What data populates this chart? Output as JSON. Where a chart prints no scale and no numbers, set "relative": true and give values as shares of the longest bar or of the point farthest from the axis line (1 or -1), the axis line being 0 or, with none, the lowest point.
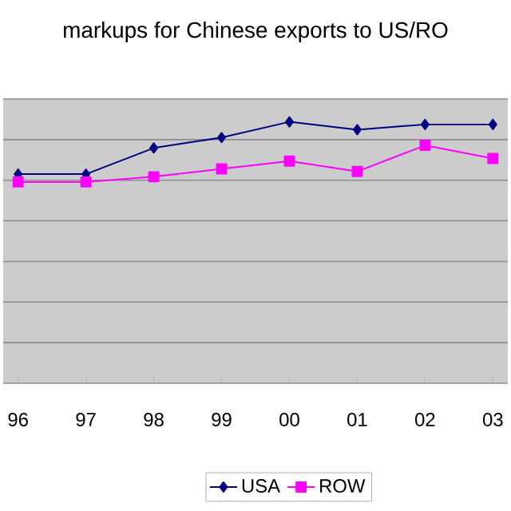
{
  "chart_data": {
    "type": "line",
    "title": "markups for Chinese exports to US/RO",
    "categories": [
      "96",
      "97",
      "98",
      "99",
      "00",
      "01",
      "02",
      "03"
    ],
    "relative": true,
    "grid": "y",
    "legend": "bottom",
    "series": [
      {
        "name": "USA",
        "color": "#000080",
        "marker": "diamond",
        "values": [
          0.8,
          0.8,
          0.9,
          0.94,
          1.0,
          0.97,
          0.99,
          0.99
        ]
      },
      {
        "name": "ROW",
        "color": "#ff00ff",
        "marker": "square",
        "values": [
          0.77,
          0.77,
          0.79,
          0.82,
          0.85,
          0.81,
          0.91,
          0.86
        ]
      }
    ]
  }
}
